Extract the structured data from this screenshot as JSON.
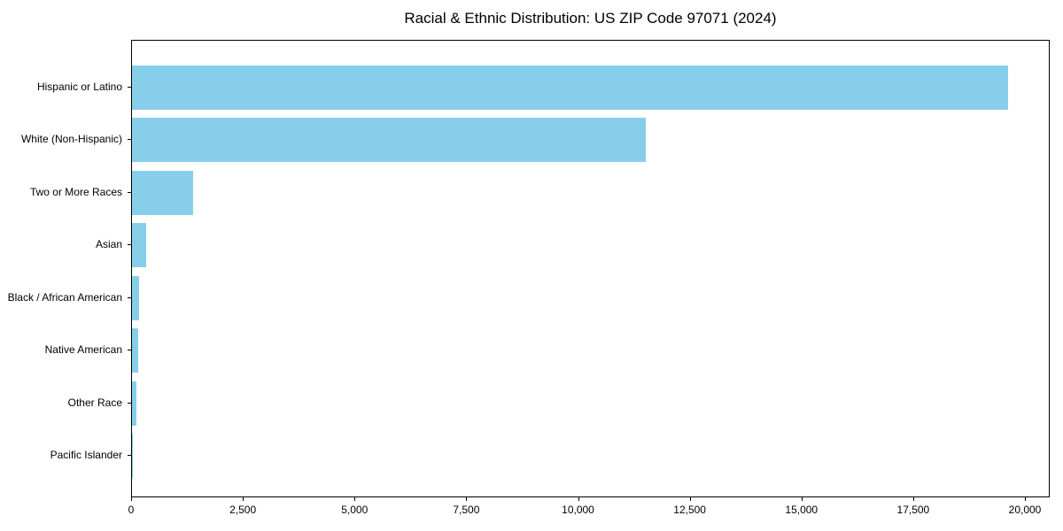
{
  "chart_data": {
    "type": "bar",
    "orientation": "horizontal",
    "title": "Racial & Ethnic Distribution: US ZIP Code 97071 (2024)",
    "categories": [
      "Hispanic or Latino",
      "White (Non-Hispanic)",
      "Two or More Races",
      "Asian",
      "Black / African American",
      "Native American",
      "Other Race",
      "Pacific Islander"
    ],
    "values": [
      19600,
      11500,
      1370,
      320,
      150,
      130,
      95,
      10
    ],
    "xlabel": "",
    "ylabel": "",
    "xlim": [
      0,
      20555
    ],
    "x_ticks": [
      0,
      2500,
      5000,
      7500,
      10000,
      12500,
      15000,
      17500,
      20000
    ],
    "x_tick_labels": [
      "0",
      "2,500",
      "5,000",
      "7,500",
      "10,000",
      "12,500",
      "15,000",
      "17,500",
      "20,000"
    ],
    "grid": false,
    "legend": "none",
    "bar_color": "#87CEEB",
    "axis_color": "#000000",
    "background_color": "#FFFFFF"
  }
}
